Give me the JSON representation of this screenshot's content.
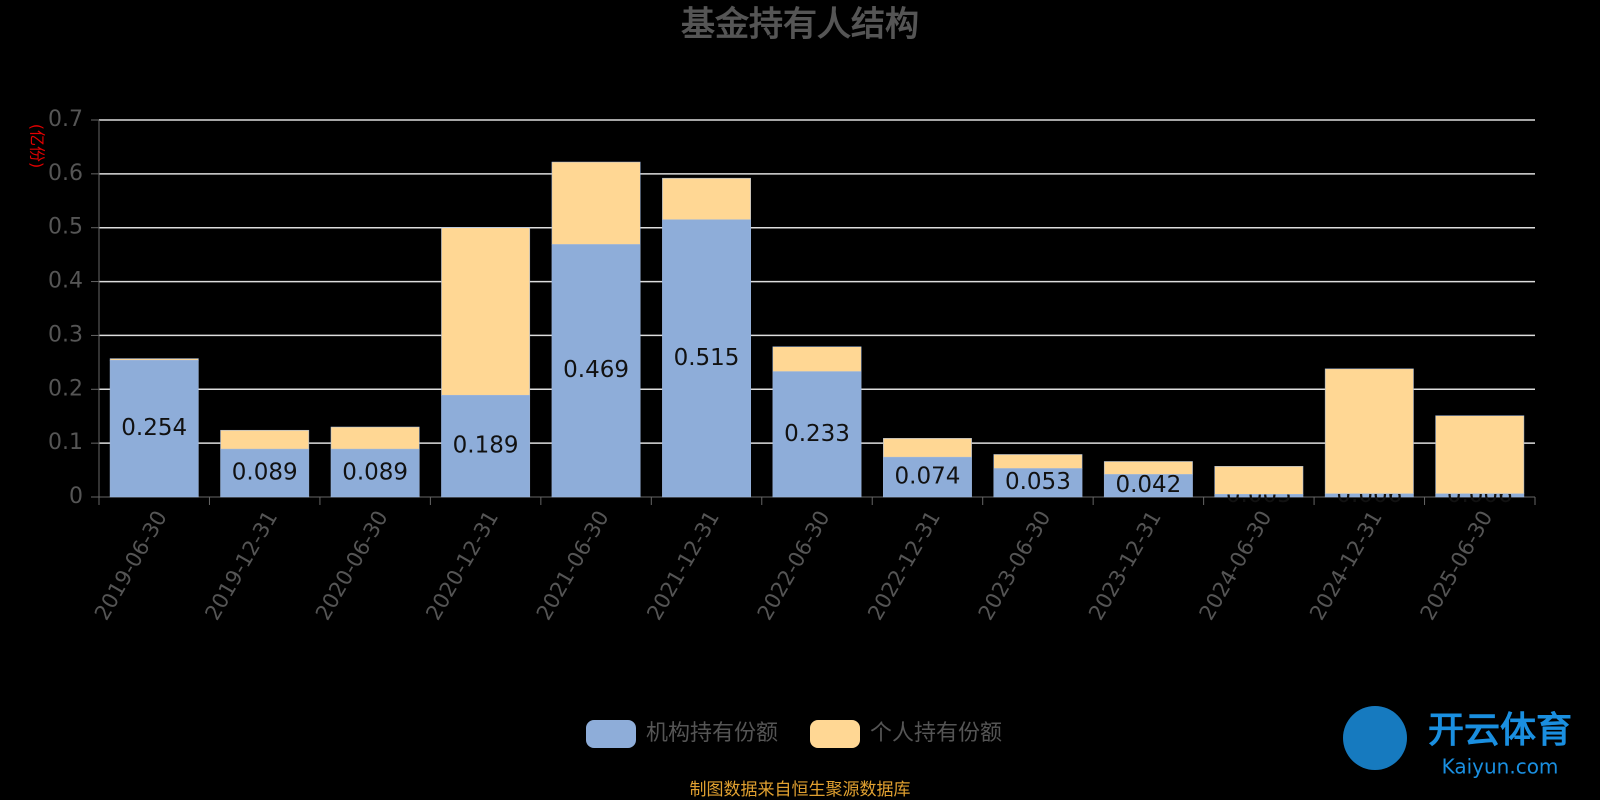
{
  "chart_data": {
    "type": "stacked_bar",
    "title": "基金持有人结构",
    "y_unit": "(亿份)",
    "categories": [
      "2019-06-30",
      "2019-12-31",
      "2020-06-30",
      "2020-12-31",
      "2021-06-30",
      "2021-12-31",
      "2022-06-30",
      "2022-12-31",
      "2023-06-30",
      "2023-12-31",
      "2024-06-30",
      "2024-12-31",
      "2025-06-30"
    ],
    "series": [
      {
        "name": "机构持有份额",
        "color": "#8eadd9",
        "values": [
          0.254,
          0.089,
          0.089,
          0.189,
          0.469,
          0.515,
          0.233,
          0.074,
          0.053,
          0.042,
          0.005,
          0.006,
          0.006
        ]
      },
      {
        "name": "个人持有份额",
        "color": "#ffd794",
        "values": [
          0.003,
          0.035,
          0.041,
          0.311,
          0.153,
          0.077,
          0.046,
          0.035,
          0.026,
          0.024,
          0.052,
          0.232,
          0.145
        ]
      }
    ],
    "ylim": [
      0,
      0.7
    ],
    "yticks": [
      0,
      0.1,
      0.2,
      0.3,
      0.4,
      0.5,
      0.6,
      0.7
    ],
    "grid": true,
    "source": "制图数据来自恒生聚源数据库",
    "watermark": {
      "name": "开云体育",
      "url": "Kaiyun.com"
    }
  }
}
